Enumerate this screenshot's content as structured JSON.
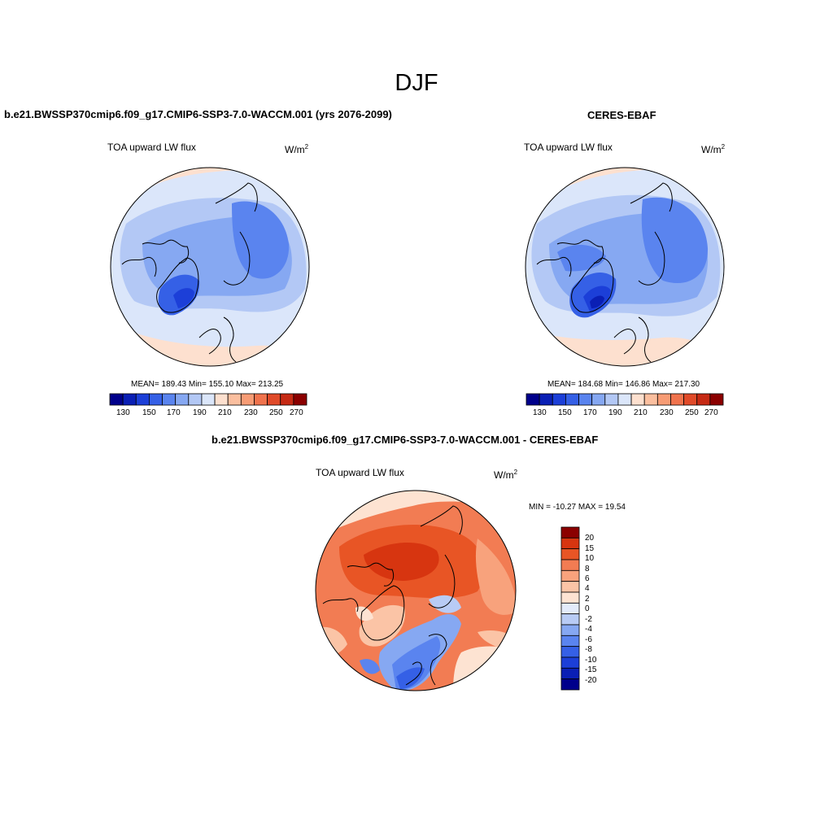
{
  "figure": {
    "title": "DJF"
  },
  "panels": [
    {
      "title": "b.e21.BWSSP370cmip6.f09_g17.CMIP6-SSP3-7.0-WACCM.001 (yrs 2076-2099)",
      "variable": "TOA upward LW flux",
      "units_base": "W/m",
      "units_exp": "2",
      "stats": "MEAN= 189.43  Min= 155.10  Max= 213.25",
      "colorbar_labels": [
        "130",
        "150",
        "170",
        "190",
        "210",
        "230",
        "250",
        "270"
      ]
    },
    {
      "title": "CERES-EBAF",
      "variable": "TOA upward LW flux",
      "units_base": "W/m",
      "units_exp": "2",
      "stats": "MEAN= 184.68  Min= 146.86  Max= 217.30",
      "colorbar_labels": [
        "130",
        "150",
        "170",
        "190",
        "210",
        "230",
        "250",
        "270"
      ]
    },
    {
      "title": "b.e21.BWSSP370cmip6.f09_g17.CMIP6-SSP3-7.0-WACCM.001 - CERES-EBAF",
      "variable": "TOA upward LW flux",
      "units_base": "W/m",
      "units_exp": "2",
      "stats": "MIN = -10.27 MAX =  19.54",
      "colorbar_labels": [
        "20",
        "15",
        "10",
        "8",
        "6",
        "4",
        "2",
        "0",
        "-2",
        "-4",
        "-6",
        "-8",
        "-10",
        "-15",
        "-20"
      ]
    }
  ],
  "colors": {
    "abs_colorbar": [
      "#00008b",
      "#0a1fb5",
      "#1c3fd8",
      "#3560e6",
      "#5a84ef",
      "#86a8f2",
      "#b3c8f5",
      "#dbe6fa",
      "#fde0cf",
      "#fbbf9f",
      "#f79c75",
      "#f0734d",
      "#e04a29",
      "#c62a14",
      "#8b0000"
    ],
    "diff_colorbar": [
      "#00008b",
      "#0a1fb5",
      "#1c3fd8",
      "#3560e6",
      "#5a84ef",
      "#86a8f2",
      "#b8cbf5",
      "#e3ebfb",
      "#fde3d2",
      "#fbc4a6",
      "#f8a27c",
      "#f27c53",
      "#e85525",
      "#d73510",
      "#8b0000"
    ]
  }
}
